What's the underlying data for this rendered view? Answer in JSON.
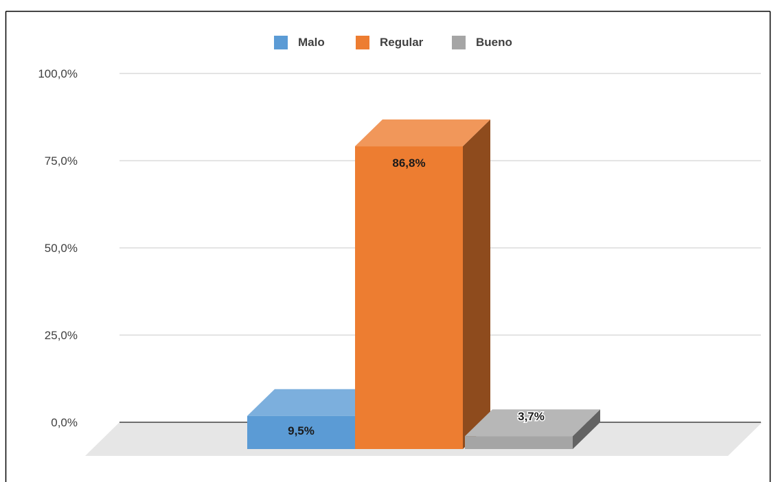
{
  "chart_data": {
    "type": "bar",
    "categories": [
      "Malo",
      "Regular",
      "Bueno"
    ],
    "values": [
      9.5,
      86.8,
      3.7
    ],
    "data_labels": [
      "9,5%",
      "86,8%",
      "3,7%"
    ],
    "ylim": [
      0,
      100
    ],
    "yticks": [
      0,
      25,
      50,
      75,
      100
    ],
    "ytick_labels": [
      "0,0%",
      "25,0%",
      "50,0%",
      "75,0%",
      "100,0%"
    ],
    "legend": [
      "Malo",
      "Regular",
      "Bueno"
    ],
    "legend_position": "top",
    "grid": true,
    "style": "3d-column",
    "colors": [
      "#5B9BD5",
      "#ED7D31",
      "#A5A5A5"
    ]
  }
}
